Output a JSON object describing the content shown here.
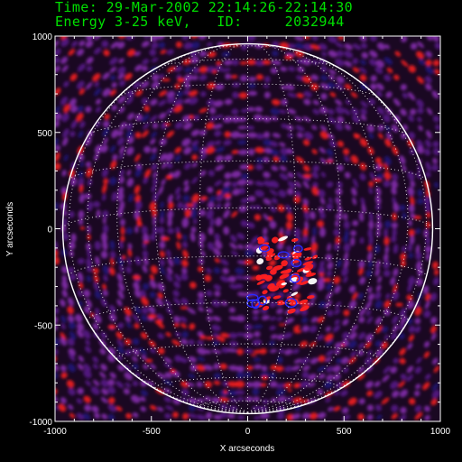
{
  "header": {
    "time_line": "Time: 29-Mar-2002 22:14:26-22:14:30",
    "energy_label": "Energy 3-25 keV,",
    "id_label": "ID:",
    "id_value": "2032944"
  },
  "chart_data": {
    "type": "heatmap",
    "title": "",
    "xlabel": "X arcseconds",
    "ylabel": "Y arcseconds",
    "xlim": [
      -1000,
      1000
    ],
    "ylim": [
      -1000,
      1000
    ],
    "xticks": [
      -1000,
      -500,
      0,
      500,
      1000
    ],
    "yticks": [
      -1000,
      -500,
      0,
      500,
      1000
    ],
    "solar_limb_radius_arcsec": 960,
    "grid": "heliographic lat/lon dotted overlay",
    "colors": {
      "background": "#000000",
      "low": "#5a1a8c",
      "mid": "#8a2fb4",
      "high": "#ff2020",
      "peak": "#ffffff",
      "negative": "#2a2aff",
      "limb": "#ffffff",
      "header_text": "#00e000"
    }
  }
}
